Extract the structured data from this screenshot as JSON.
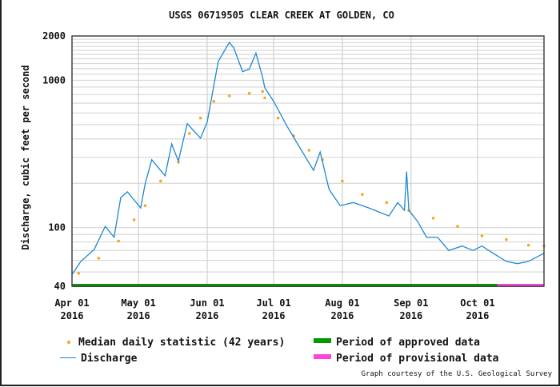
{
  "chart_data": {
    "type": "line",
    "title": "USGS 06719505 CLEAR CREEK AT GOLDEN, CO",
    "ylabel": "Discharge, cubic feet per second",
    "xlabel": "",
    "y_scale": "log",
    "ylim": [
      40,
      2000
    ],
    "xlim": [
      "2016-04-01",
      "2016-10-31"
    ],
    "grid": true,
    "y_ticks": [
      "40",
      "100",
      "1000",
      "2000"
    ],
    "x_ticks": [
      {
        "date": "2016-04-01",
        "label1": "Apr 01",
        "label2": "2016"
      },
      {
        "date": "2016-05-01",
        "label1": "May 01",
        "label2": "2016"
      },
      {
        "date": "2016-06-01",
        "label1": "Jun 01",
        "label2": "2016"
      },
      {
        "date": "2016-07-01",
        "label1": "Jul 01",
        "label2": "2016"
      },
      {
        "date": "2016-08-01",
        "label1": "Aug 01",
        "label2": "2016"
      },
      {
        "date": "2016-09-01",
        "label1": "Sep 01",
        "label2": "2016"
      },
      {
        "date": "2016-10-01",
        "label1": "Oct 01",
        "label2": "2016"
      }
    ],
    "series": [
      {
        "name": "Discharge",
        "style": "line",
        "color": "#1f88d0",
        "points": [
          [
            "2016-04-01",
            48
          ],
          [
            "2016-04-05",
            59
          ],
          [
            "2016-04-11",
            71
          ],
          [
            "2016-04-16",
            102
          ],
          [
            "2016-04-20",
            86
          ],
          [
            "2016-04-23",
            160
          ],
          [
            "2016-04-26",
            175
          ],
          [
            "2016-05-02",
            136
          ],
          [
            "2016-05-04",
            198
          ],
          [
            "2016-05-07",
            289
          ],
          [
            "2016-05-13",
            225
          ],
          [
            "2016-05-16",
            370
          ],
          [
            "2016-05-19",
            283
          ],
          [
            "2016-05-23",
            508
          ],
          [
            "2016-05-29",
            405
          ],
          [
            "2016-06-01",
            520
          ],
          [
            "2016-06-04",
            922
          ],
          [
            "2016-06-06",
            1345
          ],
          [
            "2016-06-11",
            1810
          ],
          [
            "2016-06-13",
            1660
          ],
          [
            "2016-06-17",
            1145
          ],
          [
            "2016-06-20",
            1190
          ],
          [
            "2016-06-23",
            1530
          ],
          [
            "2016-06-26",
            1050
          ],
          [
            "2016-06-27",
            890
          ],
          [
            "2016-07-01",
            720
          ],
          [
            "2016-07-07",
            489
          ],
          [
            "2016-07-14",
            326
          ],
          [
            "2016-07-19",
            245
          ],
          [
            "2016-07-22",
            326
          ],
          [
            "2016-07-26",
            182
          ],
          [
            "2016-07-31",
            141
          ],
          [
            "2016-08-06",
            148
          ],
          [
            "2016-08-13",
            136
          ],
          [
            "2016-08-22",
            120
          ],
          [
            "2016-08-26",
            148
          ],
          [
            "2016-08-29",
            131
          ],
          [
            "2016-08-30",
            240
          ],
          [
            "2016-08-31",
            131
          ],
          [
            "2016-09-04",
            110
          ],
          [
            "2016-09-08",
            86
          ],
          [
            "2016-09-13",
            86
          ],
          [
            "2016-09-18",
            70
          ],
          [
            "2016-09-24",
            75
          ],
          [
            "2016-09-29",
            70
          ],
          [
            "2016-10-03",
            75
          ],
          [
            "2016-10-08",
            67
          ],
          [
            "2016-10-14",
            59
          ],
          [
            "2016-10-19",
            57
          ],
          [
            "2016-10-24",
            59
          ],
          [
            "2016-10-31",
            67
          ]
        ]
      },
      {
        "name": "Median daily statistic (42 years)",
        "style": "dots",
        "color": "#f5a623",
        "points": [
          [
            "2016-04-04",
            49
          ],
          [
            "2016-04-13",
            62
          ],
          [
            "2016-04-22",
            81
          ],
          [
            "2016-04-29",
            113
          ],
          [
            "2016-05-04",
            141
          ],
          [
            "2016-05-11",
            207
          ],
          [
            "2016-05-19",
            278
          ],
          [
            "2016-05-24",
            436
          ],
          [
            "2016-05-29",
            555
          ],
          [
            "2016-06-04",
            720
          ],
          [
            "2016-06-11",
            784
          ],
          [
            "2016-06-20",
            816
          ],
          [
            "2016-06-26",
            840
          ],
          [
            "2016-06-27",
            760
          ],
          [
            "2016-07-03",
            555
          ],
          [
            "2016-07-10",
            420
          ],
          [
            "2016-07-17",
            335
          ],
          [
            "2016-07-23",
            289
          ],
          [
            "2016-08-01",
            207
          ],
          [
            "2016-08-10",
            168
          ],
          [
            "2016-08-21",
            148
          ],
          [
            "2016-08-31",
            131
          ],
          [
            "2016-09-11",
            116
          ],
          [
            "2016-09-22",
            102
          ],
          [
            "2016-10-03",
            88
          ],
          [
            "2016-10-14",
            83
          ],
          [
            "2016-10-24",
            76
          ],
          [
            "2016-10-31",
            75
          ]
        ]
      }
    ],
    "periods": [
      {
        "name": "Period of approved data",
        "color": "#009900",
        "start": "2016-04-01",
        "end": "2016-10-10"
      },
      {
        "name": "Period of provisional data",
        "color": "#ff44dd",
        "start": "2016-10-10",
        "end": "2016-10-31"
      }
    ],
    "legend_position": "bottom",
    "credit": "Graph courtesy of the U.S. Geological Survey"
  }
}
